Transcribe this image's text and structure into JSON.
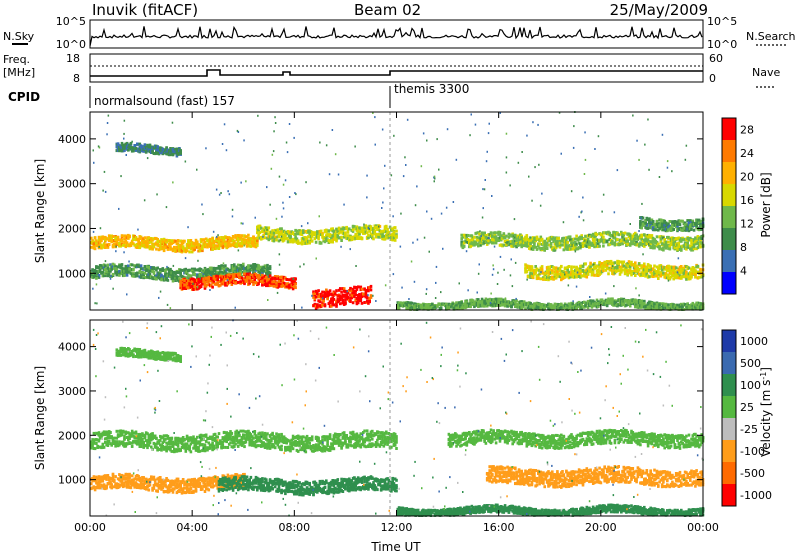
{
  "header": {
    "station": "Inuvik (fitACF)",
    "beam": "Beam 02",
    "date": "25/May/2009"
  },
  "sky_panel": {
    "left_label": "N.Sky",
    "right_label": "N.Search",
    "left_ticks": [
      "10^5",
      "10^0"
    ],
    "right_ticks": [
      "10^5",
      "10^0"
    ]
  },
  "freq_panel": {
    "left_label_1": "Freq.",
    "left_label_2": "[MHz]",
    "right_label": "Nave",
    "left_ticks": [
      "18",
      "8"
    ],
    "right_ticks": [
      "60",
      "0"
    ]
  },
  "cpid": {
    "label": "CPID",
    "segments": [
      {
        "name": "normalsound (fast) 157",
        "start": "00:00",
        "end": "12:00"
      },
      {
        "name": "themis 3300",
        "start": "12:00",
        "end": "24:00"
      }
    ]
  },
  "colors": {
    "power": [
      "#0000ff",
      "#3a6fb4",
      "#3e8c4a",
      "#6fb84a",
      "#d8d800",
      "#ffb000",
      "#ff7a00",
      "#ff0000"
    ],
    "velocity": [
      "#1e3aa8",
      "#3a6ab0",
      "#2f8f4e",
      "#55b840",
      "#bdbdbd",
      "#ff9d1a",
      "#ff6a00",
      "#ff0000"
    ]
  },
  "chart_data": [
    {
      "type": "heatmap",
      "title": "Power",
      "xlabel": "Time UT",
      "ylabel": "Slant Range [km]",
      "xlim": [
        "00:00",
        "24:00"
      ],
      "ylim": [
        180,
        4600
      ],
      "x_ticks": [
        "00:00",
        "04:00",
        "08:00",
        "12:00",
        "16:00",
        "20:00",
        "00:00"
      ],
      "y_ticks": [
        "1000",
        "2000",
        "3000",
        "4000"
      ],
      "colorbar": {
        "label": "Power [dB]",
        "ticks": [
          "4",
          "8",
          "12",
          "16",
          "20",
          "24",
          "28"
        ],
        "range": [
          0,
          30
        ]
      },
      "bands": [
        {
          "t0": 0.0,
          "t1": 6.5,
          "range_km": 1650,
          "half_width_km": 130,
          "db": 20
        },
        {
          "t0": 6.5,
          "t1": 12.0,
          "range_km": 1850,
          "half_width_km": 150,
          "db": 16
        },
        {
          "t0": 0.0,
          "t1": 7.0,
          "range_km": 1000,
          "half_width_km": 140,
          "db": 10
        },
        {
          "t0": 3.5,
          "t1": 8.0,
          "range_km": 800,
          "half_width_km": 120,
          "db": 26
        },
        {
          "t0": 8.7,
          "t1": 11.0,
          "range_km": 450,
          "half_width_km": 200,
          "db": 28
        },
        {
          "t0": 1.0,
          "t1": 3.5,
          "range_km": 3750,
          "half_width_km": 90,
          "db": 8
        },
        {
          "t0": 14.5,
          "t1": 24.0,
          "range_km": 1700,
          "half_width_km": 150,
          "db": 14
        },
        {
          "t0": 17.0,
          "t1": 24.0,
          "range_km": 1050,
          "half_width_km": 150,
          "db": 17
        },
        {
          "t0": 12.0,
          "t1": 24.0,
          "range_km": 280,
          "half_width_km": 80,
          "db": 12
        },
        {
          "t0": 21.5,
          "t1": 24.0,
          "range_km": 2100,
          "half_width_km": 120,
          "db": 10
        }
      ]
    },
    {
      "type": "heatmap",
      "title": "Velocity",
      "xlabel": "Time UT",
      "ylabel": "Slant Range [km]",
      "xlim": [
        "00:00",
        "24:00"
      ],
      "ylim": [
        180,
        4600
      ],
      "x_ticks": [
        "00:00",
        "04:00",
        "08:00",
        "12:00",
        "16:00",
        "20:00",
        "00:00"
      ],
      "y_ticks": [
        "1000",
        "2000",
        "3000",
        "4000"
      ],
      "colorbar": {
        "label": "Velocity [m s^-1]",
        "ticks": [
          "1000",
          "500",
          "100",
          "25",
          "-25",
          "-100",
          "-500",
          "-1000"
        ],
        "range": [
          -1200,
          1200
        ]
      },
      "bands": [
        {
          "t0": 0.0,
          "t1": 12.0,
          "range_km": 1850,
          "half_width_km": 180,
          "ms": 0
        },
        {
          "t0": 0.0,
          "t1": 6.0,
          "range_km": 900,
          "half_width_km": 160,
          "ms": -150
        },
        {
          "t0": 5.0,
          "t1": 12.0,
          "range_km": 850,
          "half_width_km": 150,
          "ms": 80
        },
        {
          "t0": 14.0,
          "t1": 24.0,
          "range_km": 1900,
          "half_width_km": 150,
          "ms": 0
        },
        {
          "t0": 15.5,
          "t1": 24.0,
          "range_km": 1050,
          "half_width_km": 180,
          "ms": -250
        },
        {
          "t0": 12.0,
          "t1": 24.0,
          "range_km": 280,
          "half_width_km": 80,
          "ms": 60
        },
        {
          "t0": 1.0,
          "t1": 3.5,
          "range_km": 3800,
          "half_width_km": 90,
          "ms": 0
        }
      ]
    }
  ]
}
